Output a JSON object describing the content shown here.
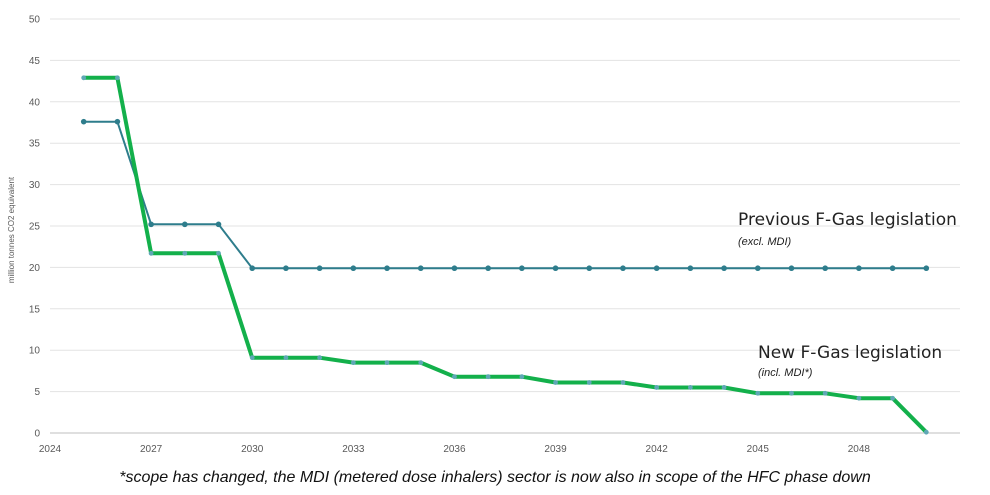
{
  "chart_data": {
    "type": "line",
    "title": "",
    "xlabel": "",
    "ylabel": "million tonnes CO2 equivalent",
    "ylim": [
      0,
      50
    ],
    "xlim": [
      2024,
      2051
    ],
    "yticks": [
      0,
      5,
      10,
      15,
      20,
      25,
      30,
      35,
      40,
      45,
      50
    ],
    "xticks": [
      2024,
      2027,
      2030,
      2033,
      2036,
      2039,
      2042,
      2045,
      2048
    ],
    "grid": "horizontal",
    "legend": "none",
    "x": [
      2025,
      2026,
      2027,
      2028,
      2029,
      2030,
      2031,
      2032,
      2033,
      2034,
      2035,
      2036,
      2037,
      2038,
      2039,
      2040,
      2041,
      2042,
      2043,
      2044,
      2045,
      2046,
      2047,
      2048,
      2049,
      2050
    ],
    "series": [
      {
        "key": "previous",
        "color": "#2e7d8c",
        "values": [
          37.6,
          37.6,
          25.2,
          25.2,
          25.2,
          19.9,
          19.9,
          19.9,
          19.9,
          19.9,
          19.9,
          19.9,
          19.9,
          19.9,
          19.9,
          19.9,
          19.9,
          19.9,
          19.9,
          19.9,
          19.9,
          19.9,
          19.9,
          19.9,
          19.9,
          19.9
        ]
      },
      {
        "key": "new",
        "color": "#13b04b",
        "values": [
          42.9,
          42.9,
          21.7,
          21.7,
          21.7,
          9.1,
          9.1,
          9.1,
          8.5,
          8.5,
          8.5,
          6.8,
          6.8,
          6.8,
          6.1,
          6.1,
          6.1,
          5.5,
          5.5,
          5.5,
          4.8,
          4.8,
          4.8,
          4.2,
          4.2,
          0.1
        ]
      }
    ],
    "annotations": {
      "previous_title": "Previous F-Gas legislation",
      "previous_sub": "(excl. MDI)",
      "new_title": "New F-Gas legislation",
      "new_sub": "(incl. MDI*)"
    }
  },
  "footnote": "*scope has changed, the MDI (metered dose inhalers) sector is now also in scope of the HFC phase down",
  "colors": {
    "grid": "#e3e3e3",
    "axis": "#bfbfbf",
    "marker": "#5fa8b5"
  }
}
